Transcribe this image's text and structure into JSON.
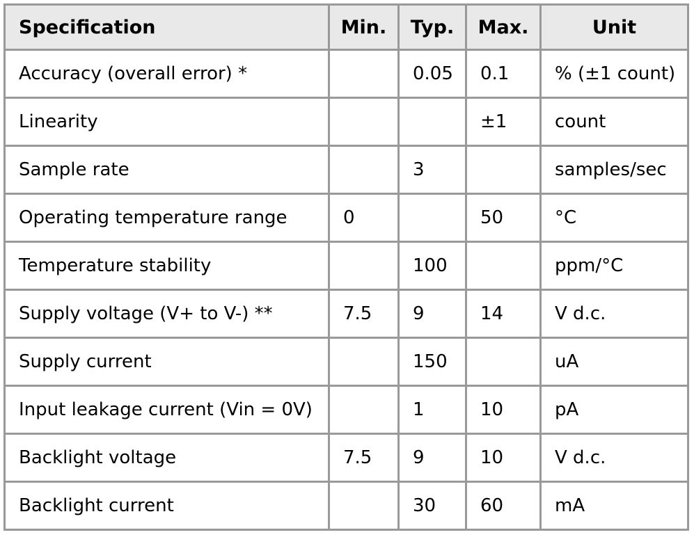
{
  "colors": {
    "border": "#999999",
    "header_bg": "#e9e9e9",
    "body_bg": "#ffffff",
    "text": "#000000"
  },
  "table": {
    "columns": [
      {
        "key": "spec",
        "label": "Specification"
      },
      {
        "key": "min",
        "label": "Min."
      },
      {
        "key": "typ",
        "label": "Typ."
      },
      {
        "key": "max",
        "label": "Max."
      },
      {
        "key": "unit",
        "label": "Unit"
      }
    ],
    "rows": [
      {
        "spec": "Accuracy (overall error) *",
        "min": "",
        "typ": "0.05",
        "max": "0.1",
        "unit": "% (±1 count)"
      },
      {
        "spec": "Linearity",
        "min": "",
        "typ": "",
        "max": "±1",
        "unit": "count"
      },
      {
        "spec": "Sample rate",
        "min": "",
        "typ": "3",
        "max": "",
        "unit": "samples/sec"
      },
      {
        "spec": "Operating temperature range",
        "min": "0",
        "typ": "",
        "max": "50",
        "unit": "°C"
      },
      {
        "spec": "Temperature stability",
        "min": "",
        "typ": "100",
        "max": "",
        "unit": "ppm/°C"
      },
      {
        "spec": "Supply voltage (V+ to V-) **",
        "min": "7.5",
        "typ": "9",
        "max": "14",
        "unit": "V d.c."
      },
      {
        "spec": "Supply current",
        "min": "",
        "typ": "150",
        "max": "",
        "unit": "uA"
      },
      {
        "spec": "Input leakage current (Vin = 0V)",
        "min": "",
        "typ": "1",
        "max": "10",
        "unit": "pA"
      },
      {
        "spec": "Backlight voltage",
        "min": "7.5",
        "typ": "9",
        "max": "10",
        "unit": "V d.c."
      },
      {
        "spec": "Backlight current",
        "min": "",
        "typ": "30",
        "max": "60",
        "unit": "mA"
      }
    ]
  }
}
